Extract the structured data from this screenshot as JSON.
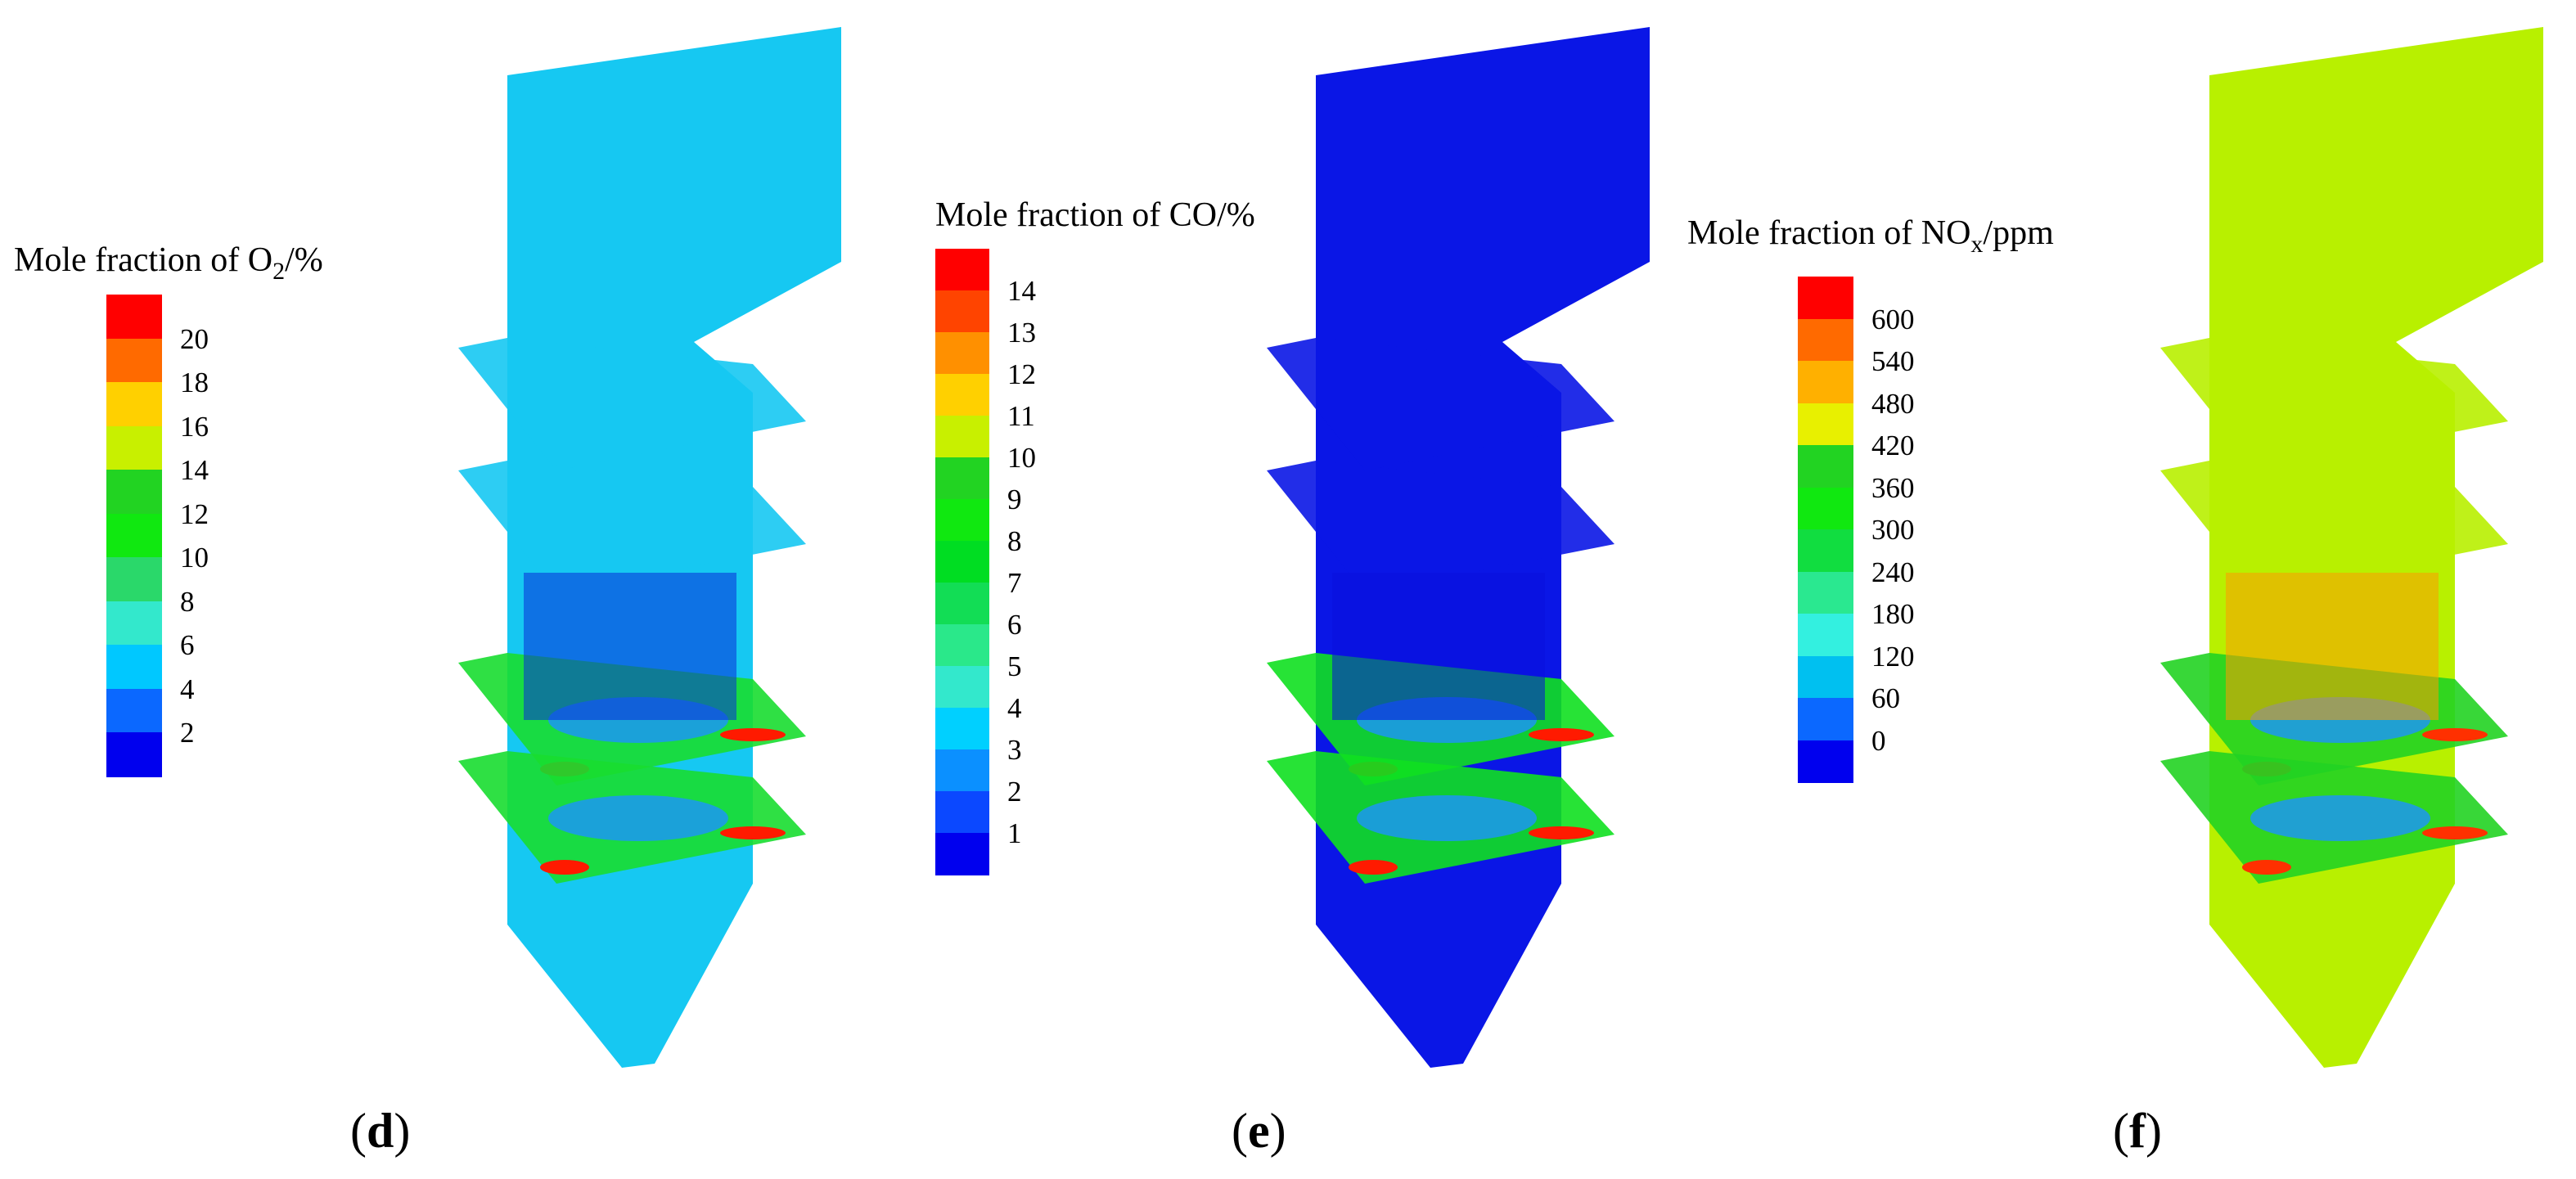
{
  "panels": [
    {
      "label_open": "(",
      "label_letter": "d",
      "label_close": ")",
      "legend": {
        "title_pre": "Mole fraction of O",
        "title_sub": "2",
        "title_post": "/%",
        "ticks": [
          "20",
          "18",
          "16",
          "14",
          "12",
          "10",
          "8",
          "6",
          "4",
          "2"
        ],
        "colors": [
          "#ff0000",
          "#ff6a00",
          "#ffd000",
          "#c8f000",
          "#22d322",
          "#10e810",
          "#2ad86a",
          "#33e8cc",
          "#00c8ff",
          "#0b68ff",
          "#0000ee"
        ]
      },
      "field": {
        "base": "#16c8f2",
        "floor": "#0a2bd9",
        "hot": "#ff1a00",
        "warm": "#18dd30",
        "cool": "#1d92ff"
      }
    },
    {
      "label_open": "(",
      "label_letter": "e",
      "label_close": ")",
      "legend": {
        "title_pre": "Mole fraction of CO/%",
        "title_sub": "",
        "title_post": "",
        "ticks": [
          "14",
          "13",
          "12",
          "11",
          "10",
          "9",
          "8",
          "7",
          "6",
          "5",
          "4",
          "3",
          "2",
          "1"
        ],
        "colors": [
          "#ff0000",
          "#ff4400",
          "#ff9000",
          "#ffd000",
          "#c8f000",
          "#22d322",
          "#10e810",
          "#00dd22",
          "#12dd55",
          "#2ae88a",
          "#33e8cc",
          "#00d0ff",
          "#0b90ff",
          "#0b48ff",
          "#0000ee"
        ]
      },
      "field": {
        "base": "#0a16e6",
        "floor": "#0a10dd",
        "hot": "#ff1a00",
        "warm": "#10e020",
        "cool": "#1d92ff"
      }
    },
    {
      "label_open": "(",
      "label_letter": "f",
      "label_close": ")",
      "legend": {
        "title_pre": "Mole fraction of NO",
        "title_sub": "x",
        "title_post": "/ppm",
        "ticks": [
          "600",
          "540",
          "480",
          "420",
          "360",
          "300",
          "240",
          "180",
          "120",
          "60",
          "0"
        ],
        "colors": [
          "#ff0000",
          "#ff6a00",
          "#ffb000",
          "#e8f000",
          "#22d322",
          "#10e810",
          "#11dd40",
          "#2ae890",
          "#33f0e0",
          "#00c0f0",
          "#0b68ff",
          "#0000ee"
        ]
      },
      "field": {
        "base": "#b8f000",
        "floor": "#ff9a00",
        "hot": "#ff3000",
        "warm": "#22d322",
        "cool": "#1d92ff"
      }
    }
  ]
}
